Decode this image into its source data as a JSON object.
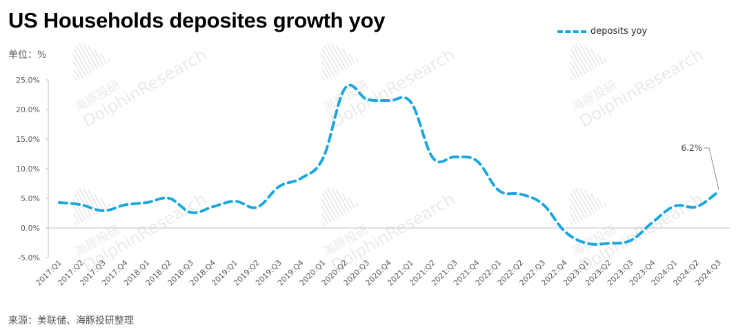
{
  "title": "US Households deposites growth yoy",
  "unit_label": "单位：%",
  "source": "来源：美联储、海豚投研整理",
  "watermark": {
    "cn": "海豚投研",
    "en": "DolphinResearch"
  },
  "colors": {
    "series": "#1aa7e0",
    "axis": "#bfbfbf",
    "text": "#595959"
  },
  "chart_data": {
    "type": "line",
    "style": "dashed-smooth",
    "legend_position": "top-right",
    "grid": false,
    "ylim": [
      -5,
      25
    ],
    "yticks": [
      -5,
      0,
      5,
      10,
      15,
      20,
      25
    ],
    "ytick_labels": [
      "-5.0%",
      "0.0%",
      "5.0%",
      "10.0%",
      "15.0%",
      "20.0%",
      "25.0%"
    ],
    "categories": [
      "2017:Q1",
      "2017:Q2",
      "2017:Q3",
      "2017:Q4",
      "2018:Q1",
      "2018:Q2",
      "2018:Q3",
      "2018:Q4",
      "2019:Q1",
      "2019:Q2",
      "2019:Q3",
      "2019:Q4",
      "2020:Q1",
      "2020:Q2",
      "2020:Q3",
      "2020:Q4",
      "2021:Q1",
      "2021:Q2",
      "2021:Q3",
      "2021:Q4",
      "2022:Q1",
      "2022:Q2",
      "2022:Q3",
      "2022:Q4",
      "2023:Q1",
      "2023:Q2",
      "2023:Q3",
      "2023:Q4",
      "2024:Q1",
      "2024:Q2",
      "2024:Q3"
    ],
    "series": [
      {
        "name": "deposits yoy",
        "values": [
          4.3,
          3.9,
          2.9,
          3.9,
          4.3,
          5.0,
          2.6,
          3.6,
          4.5,
          3.5,
          7.0,
          8.4,
          11.8,
          23.6,
          21.7,
          21.5,
          21.2,
          11.8,
          12.0,
          11.3,
          6.3,
          5.7,
          4.0,
          -0.6,
          -2.6,
          -2.6,
          -2.1,
          1.0,
          3.7,
          3.6,
          6.2
        ]
      }
    ],
    "annotations": [
      {
        "category": "2024:Q3",
        "text": "6.2%"
      }
    ]
  }
}
